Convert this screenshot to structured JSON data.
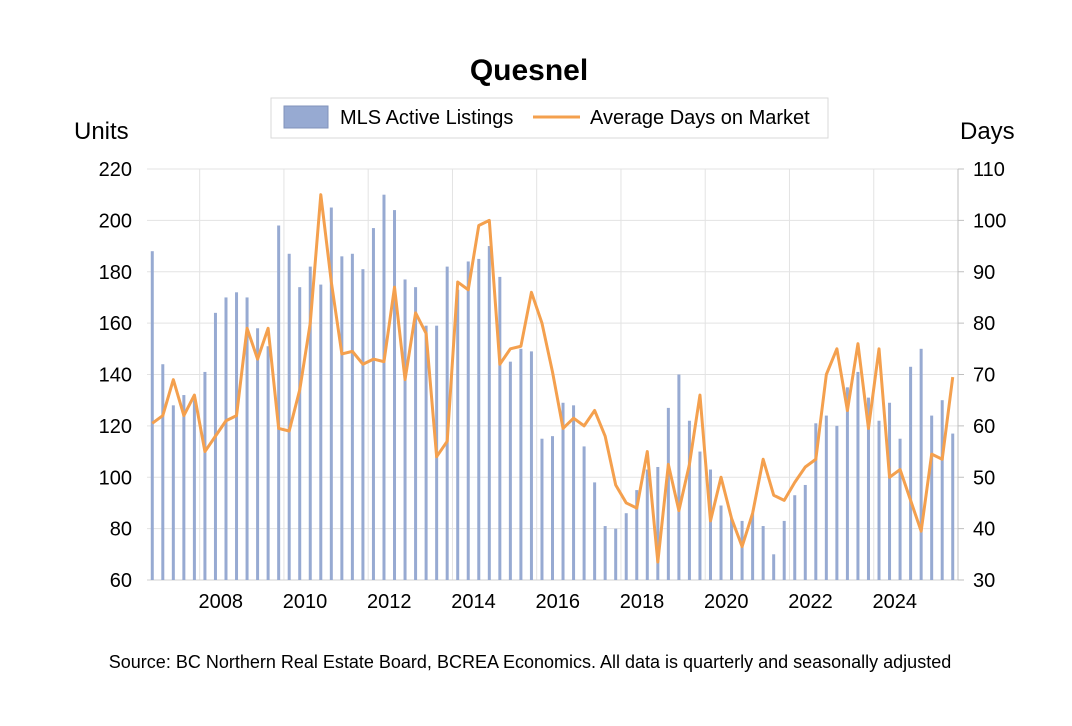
{
  "chart_data": {
    "type": "bar+line",
    "title": "Quesnel",
    "source": "Source: BC Northern Real Estate Board, BCREA Economics. All data is quarterly and seasonally adjusted",
    "left_axis": {
      "label": "Units",
      "range": [
        60,
        220
      ],
      "ticks": [
        60,
        80,
        100,
        120,
        140,
        160,
        180,
        200,
        220
      ]
    },
    "right_axis": {
      "label": "Days",
      "range": [
        30,
        110
      ],
      "ticks": [
        30,
        40,
        50,
        60,
        70,
        80,
        90,
        100,
        110
      ]
    },
    "x_axis": {
      "start": 2006.75,
      "end": 2026.0,
      "tick_labels": [
        "2008",
        "2010",
        "2012",
        "2014",
        "2016",
        "2018",
        "2020",
        "2022",
        "2024"
      ]
    },
    "grid": true,
    "legend": {
      "placement": "top",
      "entries": [
        "MLS Active Listings",
        "Average Days on Market"
      ]
    },
    "colors": {
      "bars": "#97aad2",
      "bar_edge": "#8293bb",
      "line": "#f4a04e",
      "grid": "#e3e3e3"
    },
    "series": [
      {
        "name": "MLS Active Listings",
        "kind": "bar",
        "axis": "left",
        "values": [
          188,
          144,
          128,
          132,
          130,
          141,
          164,
          170,
          172,
          170,
          158,
          151,
          198,
          187,
          174,
          182,
          175,
          205,
          186,
          187,
          181,
          197,
          210,
          204,
          177,
          174,
          159,
          159,
          182,
          173,
          184,
          185,
          190,
          178,
          145,
          150,
          149,
          115,
          116,
          129,
          128,
          112,
          98,
          81,
          80,
          86,
          95,
          103,
          104,
          127,
          140,
          122,
          110,
          103,
          89,
          84,
          83,
          86,
          81,
          70,
          83,
          93,
          97,
          121,
          124,
          120,
          135,
          141,
          131,
          122,
          129,
          115,
          143,
          150,
          124,
          130,
          117
        ]
      },
      {
        "name": "Average Days on Market",
        "kind": "line",
        "axis": "right",
        "values": [
          60.5,
          62,
          69,
          62,
          66,
          55,
          58,
          61,
          62,
          79,
          73,
          79,
          59.5,
          59,
          67,
          80,
          105,
          88,
          74,
          74.5,
          72,
          73,
          72.5,
          87,
          69,
          82,
          78,
          54,
          57,
          88,
          86.5,
          99,
          100,
          72,
          75,
          75.5,
          86,
          80,
          70.5,
          59.5,
          61.5,
          60,
          63,
          58,
          48.5,
          45,
          44,
          55,
          33.5,
          52.5,
          43.5,
          52.5,
          66,
          41.5,
          50,
          42,
          36.5,
          43,
          53.5,
          46.5,
          45.5,
          49,
          52,
          53.5,
          70,
          75,
          63,
          76,
          59.5,
          75,
          50,
          51.5,
          45.5,
          39.5,
          54.5,
          53.5,
          69.5
        ]
      }
    ]
  }
}
